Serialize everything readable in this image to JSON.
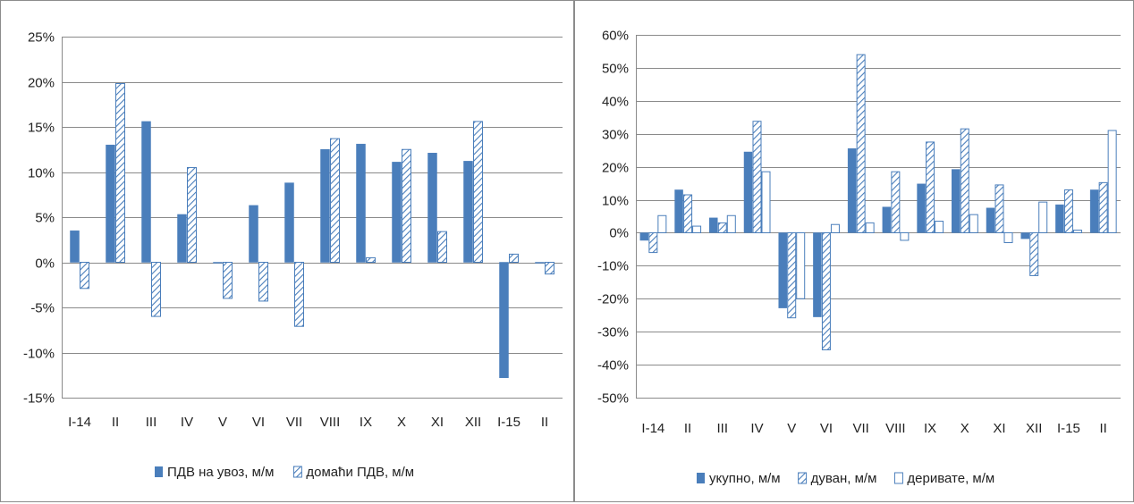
{
  "chart_data": [
    {
      "type": "bar",
      "categories": [
        "I-14",
        "II",
        "III",
        "IV",
        "V",
        "VI",
        "VII",
        "VIII",
        "IX",
        "X",
        "XI",
        "XII",
        "I-15",
        "II"
      ],
      "ylim": [
        -15,
        25
      ],
      "yticks": [
        25,
        20,
        15,
        10,
        5,
        0,
        -5,
        -10,
        -15
      ],
      "ytick_labels": [
        "25%",
        "20%",
        "15%",
        "10%",
        "5%",
        "0%",
        "-5%",
        "-10%",
        "-15%"
      ],
      "grid": true,
      "legend_position": "bottom",
      "series": [
        {
          "name": "ПДВ на увоз, м/м",
          "style": "solid",
          "color": "#4a7ebb",
          "values": [
            3.5,
            13.0,
            15.6,
            5.3,
            0.0,
            6.3,
            8.8,
            12.5,
            13.1,
            11.1,
            12.1,
            11.2,
            -12.8,
            0.0
          ]
        },
        {
          "name": "домаћи ПДВ, м/м",
          "style": "hatched",
          "color": "#4a7ebb",
          "values": [
            -2.9,
            19.8,
            -6.0,
            10.5,
            -4.0,
            -4.3,
            -7.1,
            13.7,
            0.5,
            12.5,
            3.4,
            15.6,
            0.9,
            -1.3
          ]
        }
      ]
    },
    {
      "type": "bar",
      "categories": [
        "I-14",
        "II",
        "III",
        "IV",
        "V",
        "VI",
        "VII",
        "VIII",
        "IX",
        "X",
        "XI",
        "XII",
        "I-15",
        "II"
      ],
      "ylim": [
        -50,
        60
      ],
      "yticks": [
        60,
        50,
        40,
        30,
        20,
        10,
        0,
        -10,
        -20,
        -30,
        -40,
        -50
      ],
      "ytick_labels": [
        "60%",
        "50%",
        "40%",
        "30%",
        "20%",
        "10%",
        "0%",
        "-10%",
        "-20%",
        "-30%",
        "-40%",
        "-50%"
      ],
      "grid": true,
      "legend_position": "bottom",
      "series": [
        {
          "name": "укупно, м/м",
          "style": "solid",
          "color": "#4a7ebb",
          "values": [
            -2.3,
            13.0,
            4.5,
            24.5,
            -22.8,
            -25.5,
            25.5,
            7.8,
            14.8,
            19.2,
            7.5,
            -1.8,
            8.5,
            13.0
          ]
        },
        {
          "name": "дуван, м/м",
          "style": "hatched",
          "color": "#4a7ebb",
          "values": [
            -6.0,
            11.5,
            3.0,
            33.8,
            -25.8,
            -35.5,
            54.0,
            18.5,
            27.5,
            31.5,
            14.5,
            -13.0,
            13.0,
            15.2
          ]
        },
        {
          "name": "деривате, м/м",
          "style": "outline",
          "color": "#4a7ebb",
          "values": [
            5.2,
            2.0,
            5.2,
            18.5,
            -20.0,
            2.5,
            3.0,
            -2.3,
            3.5,
            5.5,
            -3.0,
            9.3,
            0.8,
            31.0
          ]
        }
      ]
    }
  ]
}
